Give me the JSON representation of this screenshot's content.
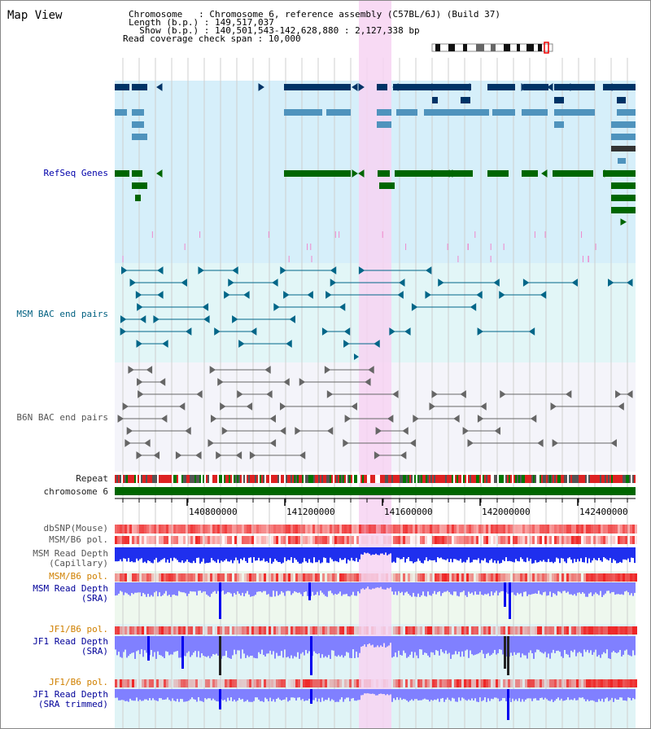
{
  "app": {
    "title": "Map View"
  },
  "header": {
    "rows": [
      {
        "key": "Chromosome",
        "sep": "   : ",
        "value": "Chromosome 6, reference assembly (C57BL/6J) (Build 37)"
      },
      {
        "key": "Length (b.p.)",
        "sep": " : ",
        "value": "149,517,037"
      },
      {
        "key": "  Show (b.p.)",
        "sep": " : ",
        "value": "140,501,543-142,628,880 : 2,127,338 bp"
      },
      {
        "key": "Read coverage check span",
        "sep": " : ",
        "value": "10,000"
      }
    ]
  },
  "tracks": {
    "refseq": "RefSeq Genes",
    "msm_bac": "MSM BAC end pairs",
    "b6n_bac": "B6N BAC end pairs",
    "repeat": "Repeat",
    "chromosome": "chromosome 6",
    "dbsnp": "dbSNP(Mouse)",
    "msm_b6_pol": "MSM/B6 pol.",
    "msm_depth_cap": "MSM Read Depth\n(Capillary)",
    "msm_b6_pol2": "MSM/B6 pol.",
    "msm_depth_sra": "MSM Read Depth\n(SRA)",
    "jf1_b6_pol": "JF1/B6 pol.",
    "jf1_depth_sra": "JF1 Read Depth\n(SRA)",
    "jf1_b6_pol2": "JF1/B6 pol.",
    "jf1_depth_trim": "JF1 Read Depth\n(SRA trimmed)"
  },
  "axis": {
    "ticks": [
      "140800000",
      "141200000",
      "141600000",
      "142000000",
      "142400000"
    ]
  },
  "colors": {
    "refseq_bg": "#d6effa",
    "highlight": "#f7d4f2",
    "gene_dark": "#003366",
    "gene_mid": "#4f93bd",
    "gene_green": "#006600",
    "msm_line": "#006688",
    "b6n_line": "#666666",
    "chrom_bar": "#006600",
    "depth_blue": "#0000ee",
    "depth_light": "#8080ff"
  }
}
